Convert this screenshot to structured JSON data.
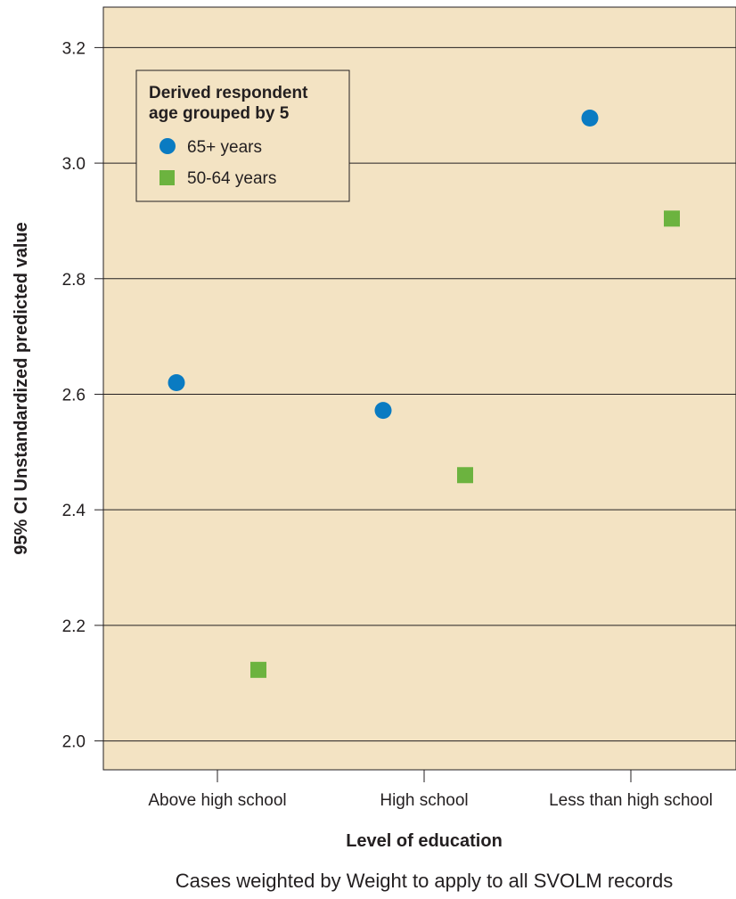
{
  "chart_data": {
    "type": "scatter",
    "title": "",
    "xlabel": "Level of education",
    "ylabel": "95% CI Unstandardized predicted value",
    "caption": "Cases weighted by Weight to apply to all SVOLM records",
    "categories": [
      "Above high school",
      "High school",
      "Less than high school"
    ],
    "ylim": [
      1.95,
      3.27
    ],
    "yticks": [
      "2.0",
      "2.2",
      "2.4",
      "2.6",
      "2.8",
      "3.0",
      "3.2"
    ],
    "grid": true,
    "legend": {
      "title_line1": "Derived respondent",
      "title_line2": "age grouped by 5",
      "placement": "top-left"
    },
    "series": [
      {
        "name": "65+ years",
        "marker": "circle",
        "color": "#0a7bc2",
        "values": [
          2.62,
          2.572,
          3.078
        ]
      },
      {
        "name": "50-64 years",
        "marker": "square",
        "color": "#6cb33f",
        "values": [
          2.123,
          2.46,
          2.904
        ]
      }
    ],
    "colors": {
      "plot_background": "#f3e3c3",
      "gridline": "#231f20"
    }
  }
}
